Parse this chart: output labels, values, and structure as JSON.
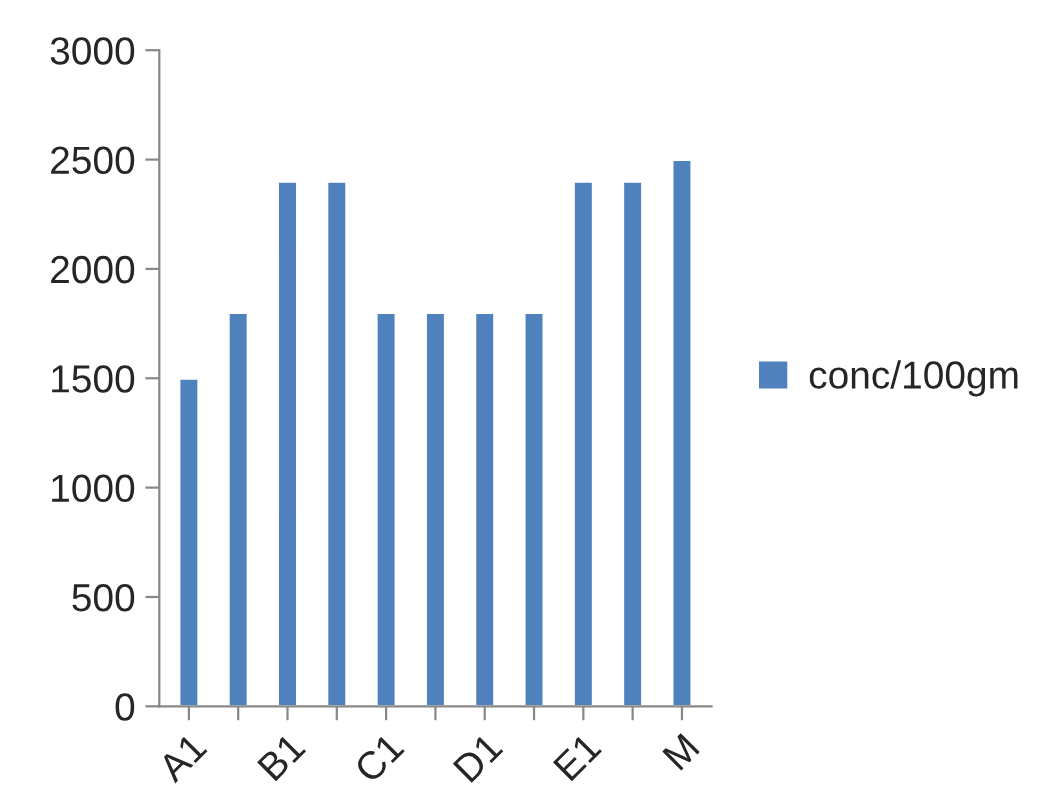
{
  "chart_data": {
    "type": "bar",
    "categories": [
      "A1",
      null,
      "B1",
      null,
      "C1",
      null,
      "D1",
      null,
      "E1",
      null,
      "M"
    ],
    "series": [
      {
        "name": "conc/100gm",
        "color": "#4f81bd",
        "values": [
          1500,
          1800,
          2400,
          2400,
          1800,
          1800,
          1800,
          1800,
          2400,
          2400,
          2500
        ]
      }
    ],
    "ylim": [
      0,
      3000
    ],
    "yticks": [
      0,
      500,
      1000,
      1500,
      2000,
      2500,
      3000
    ],
    "grid": false,
    "legend": "right"
  }
}
